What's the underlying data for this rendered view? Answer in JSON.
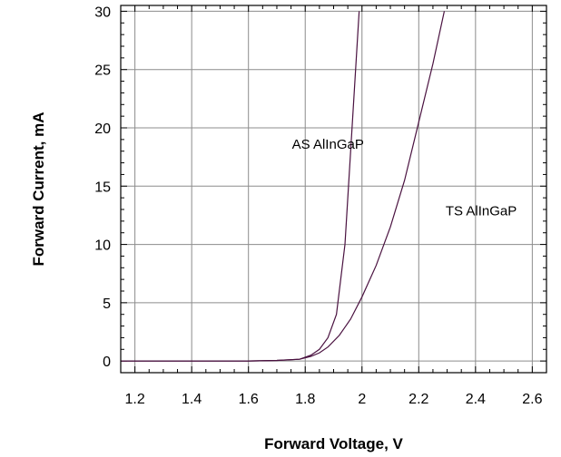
{
  "chart_data": {
    "type": "line",
    "title": "",
    "xlabel": "Forward Voltage, V",
    "ylabel": "Forward Current, mA",
    "xlim": [
      1.15,
      2.65
    ],
    "ylim": [
      -1,
      30.5
    ],
    "xticks": [
      1.2,
      1.4,
      1.6,
      1.8,
      2,
      2.2,
      2.4,
      2.6
    ],
    "xtick_labels": [
      "1.2",
      "1.4",
      "1.6",
      "1.8",
      "2",
      "2.2",
      "2.4",
      "2.6"
    ],
    "yticks": [
      0,
      5,
      10,
      15,
      20,
      25,
      30
    ],
    "ytick_labels": [
      "0",
      "5",
      "10",
      "15",
      "20",
      "25",
      "30"
    ],
    "grid": true,
    "line_color": "#4a1240",
    "series": [
      {
        "x": [
          1.15,
          1.6,
          1.7,
          1.78,
          1.82,
          1.85,
          1.88,
          1.91,
          1.94,
          1.97,
          1.99
        ],
        "y": [
          0,
          0,
          0.05,
          0.15,
          0.5,
          1.0,
          2.0,
          4.0,
          10.0,
          22.0,
          30.0
        ]
      },
      {
        "x": [
          1.15,
          1.6,
          1.7,
          1.78,
          1.82,
          1.85,
          1.88,
          1.92,
          1.96,
          2.0,
          2.05,
          2.1,
          2.15,
          2.2,
          2.25,
          2.29
        ],
        "y": [
          0,
          0,
          0.05,
          0.15,
          0.4,
          0.7,
          1.2,
          2.2,
          3.6,
          5.5,
          8.2,
          11.5,
          15.5,
          20.5,
          25.5,
          30.0
        ]
      }
    ],
    "annotations": [
      {
        "text": "AS AlInGaP",
        "x": 1.88,
        "y": 18.2
      },
      {
        "text": "TS AlInGaP",
        "x": 2.42,
        "y": 12.5
      }
    ]
  }
}
